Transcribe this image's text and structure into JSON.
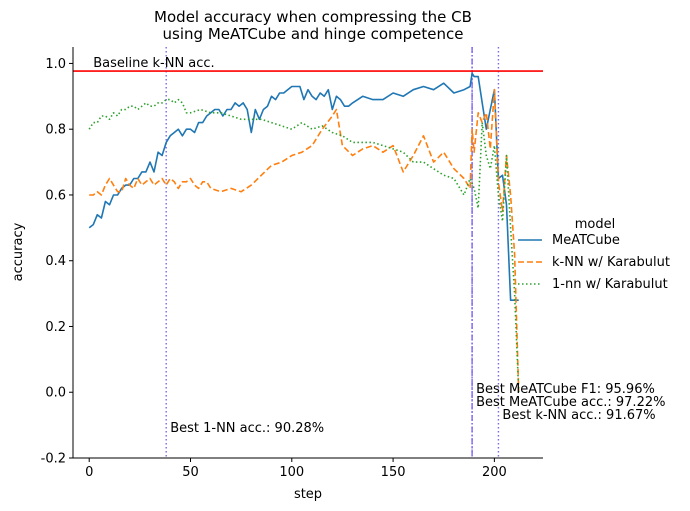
{
  "chart_data": {
    "type": "line",
    "title_lines": [
      "Model accuracy when compressing the CB",
      "using MeATCube and hinge competence"
    ],
    "xlabel": "step",
    "ylabel": "accuracy",
    "xlim": [
      -8,
      224
    ],
    "ylim": [
      -0.2,
      1.05
    ],
    "xticks": [
      0,
      50,
      100,
      150,
      200
    ],
    "yticks": [
      -0.2,
      0.0,
      0.2,
      0.4,
      0.6,
      0.8,
      1.0
    ],
    "grid": false,
    "legend": {
      "title": "model",
      "placement": "right",
      "entries": [
        "MeATCube",
        "k-NN w/ Karabulut",
        "1-nn w/ Karabulut"
      ]
    },
    "colors": {
      "meatcube": "#1f77b4",
      "knn": "#ff7f0e",
      "onenn": "#2ca02c",
      "baseline": "#ff0000",
      "vlines": "#7b68ee"
    },
    "baseline": {
      "y": 0.9769,
      "label": "Baseline k-NN acc."
    },
    "vlines": [
      {
        "x": 38,
        "style": "dotted",
        "label": "Best 1-NN acc.: 90.28%"
      },
      {
        "x": 189,
        "style": "dashdot",
        "label": "Best MeATCube F1: 95.96%"
      },
      {
        "x": 189,
        "style": "dotted",
        "label": "Best MeATCube acc.: 97.22%"
      },
      {
        "x": 202,
        "style": "dotted",
        "label": "Best k-NN acc.: 91.67%"
      }
    ],
    "series": [
      {
        "name": "MeATCube",
        "color": "#1f77b4",
        "dash": "solid",
        "x": [
          0,
          2,
          4,
          6,
          8,
          10,
          12,
          14,
          16,
          18,
          20,
          22,
          24,
          26,
          28,
          30,
          32,
          34,
          36,
          38,
          40,
          42,
          44,
          46,
          48,
          50,
          52,
          54,
          56,
          58,
          60,
          62,
          64,
          66,
          68,
          70,
          72,
          74,
          76,
          78,
          80,
          82,
          84,
          86,
          88,
          90,
          92,
          94,
          96,
          98,
          100,
          102,
          104,
          106,
          108,
          110,
          112,
          114,
          116,
          118,
          120,
          122,
          124,
          126,
          128,
          130,
          135,
          140,
          145,
          150,
          155,
          160,
          165,
          170,
          175,
          180,
          185,
          188,
          189,
          190,
          192,
          194,
          196,
          198,
          200,
          202,
          204,
          206,
          208,
          210,
          212
        ],
        "y": [
          0.5,
          0.51,
          0.54,
          0.53,
          0.58,
          0.57,
          0.6,
          0.6,
          0.62,
          0.63,
          0.63,
          0.65,
          0.65,
          0.67,
          0.67,
          0.7,
          0.67,
          0.73,
          0.72,
          0.76,
          0.78,
          0.79,
          0.8,
          0.78,
          0.8,
          0.8,
          0.79,
          0.82,
          0.82,
          0.84,
          0.85,
          0.86,
          0.86,
          0.84,
          0.86,
          0.86,
          0.88,
          0.87,
          0.88,
          0.86,
          0.79,
          0.86,
          0.83,
          0.86,
          0.87,
          0.9,
          0.89,
          0.91,
          0.91,
          0.92,
          0.93,
          0.93,
          0.93,
          0.89,
          0.92,
          0.9,
          0.89,
          0.91,
          0.9,
          0.92,
          0.86,
          0.9,
          0.89,
          0.87,
          0.87,
          0.88,
          0.9,
          0.89,
          0.89,
          0.91,
          0.9,
          0.92,
          0.93,
          0.92,
          0.94,
          0.91,
          0.92,
          0.93,
          0.97,
          0.96,
          0.96,
          0.88,
          0.8,
          0.86,
          0.92,
          0.65,
          0.66,
          0.57,
          0.28,
          0.28,
          0.28
        ]
      },
      {
        "name": "k-NN w/ Karabulut",
        "color": "#ff7f0e",
        "dash": "dashed",
        "x": [
          0,
          2,
          4,
          6,
          8,
          10,
          12,
          14,
          16,
          18,
          20,
          22,
          24,
          26,
          28,
          30,
          32,
          34,
          36,
          38,
          40,
          42,
          44,
          46,
          48,
          50,
          52,
          54,
          56,
          58,
          60,
          65,
          70,
          75,
          80,
          85,
          90,
          95,
          100,
          105,
          110,
          115,
          120,
          122,
          125,
          130,
          135,
          140,
          145,
          150,
          155,
          160,
          165,
          170,
          175,
          180,
          185,
          188,
          189,
          190,
          192,
          194,
          196,
          198,
          200,
          202,
          204,
          206,
          208,
          210,
          212
        ],
        "y": [
          0.6,
          0.6,
          0.61,
          0.6,
          0.63,
          0.65,
          0.63,
          0.61,
          0.61,
          0.65,
          0.63,
          0.62,
          0.65,
          0.63,
          0.64,
          0.65,
          0.63,
          0.64,
          0.65,
          0.63,
          0.65,
          0.64,
          0.62,
          0.64,
          0.64,
          0.65,
          0.63,
          0.62,
          0.64,
          0.64,
          0.62,
          0.61,
          0.62,
          0.61,
          0.63,
          0.66,
          0.69,
          0.7,
          0.72,
          0.73,
          0.75,
          0.8,
          0.84,
          0.86,
          0.75,
          0.72,
          0.74,
          0.75,
          0.73,
          0.75,
          0.67,
          0.72,
          0.78,
          0.7,
          0.73,
          0.68,
          0.65,
          0.62,
          0.8,
          0.73,
          0.85,
          0.82,
          0.85,
          0.74,
          0.92,
          0.64,
          0.55,
          0.72,
          0.6,
          0.42,
          0.0
        ]
      },
      {
        "name": "1-nn w/ Karabulut",
        "color": "#2ca02c",
        "dash": "dotted",
        "x": [
          0,
          2,
          4,
          6,
          8,
          10,
          12,
          14,
          16,
          18,
          20,
          22,
          24,
          26,
          28,
          30,
          32,
          34,
          36,
          38,
          40,
          42,
          44,
          46,
          48,
          50,
          55,
          60,
          65,
          70,
          75,
          80,
          85,
          90,
          95,
          100,
          105,
          110,
          115,
          120,
          125,
          130,
          135,
          140,
          145,
          150,
          155,
          160,
          165,
          170,
          175,
          180,
          185,
          188,
          190,
          192,
          194,
          196,
          198,
          200,
          202,
          204,
          206,
          208,
          210,
          212
        ],
        "y": [
          0.8,
          0.82,
          0.82,
          0.84,
          0.84,
          0.83,
          0.85,
          0.84,
          0.86,
          0.86,
          0.87,
          0.87,
          0.86,
          0.87,
          0.88,
          0.87,
          0.87,
          0.88,
          0.88,
          0.89,
          0.89,
          0.88,
          0.89,
          0.88,
          0.85,
          0.85,
          0.86,
          0.85,
          0.85,
          0.84,
          0.83,
          0.83,
          0.83,
          0.82,
          0.81,
          0.8,
          0.82,
          0.8,
          0.81,
          0.79,
          0.78,
          0.76,
          0.76,
          0.76,
          0.75,
          0.74,
          0.73,
          0.7,
          0.7,
          0.68,
          0.66,
          0.65,
          0.6,
          0.65,
          0.62,
          0.56,
          0.82,
          0.72,
          0.68,
          0.75,
          0.6,
          0.52,
          0.72,
          0.5,
          0.3,
          0.0
        ]
      }
    ]
  }
}
